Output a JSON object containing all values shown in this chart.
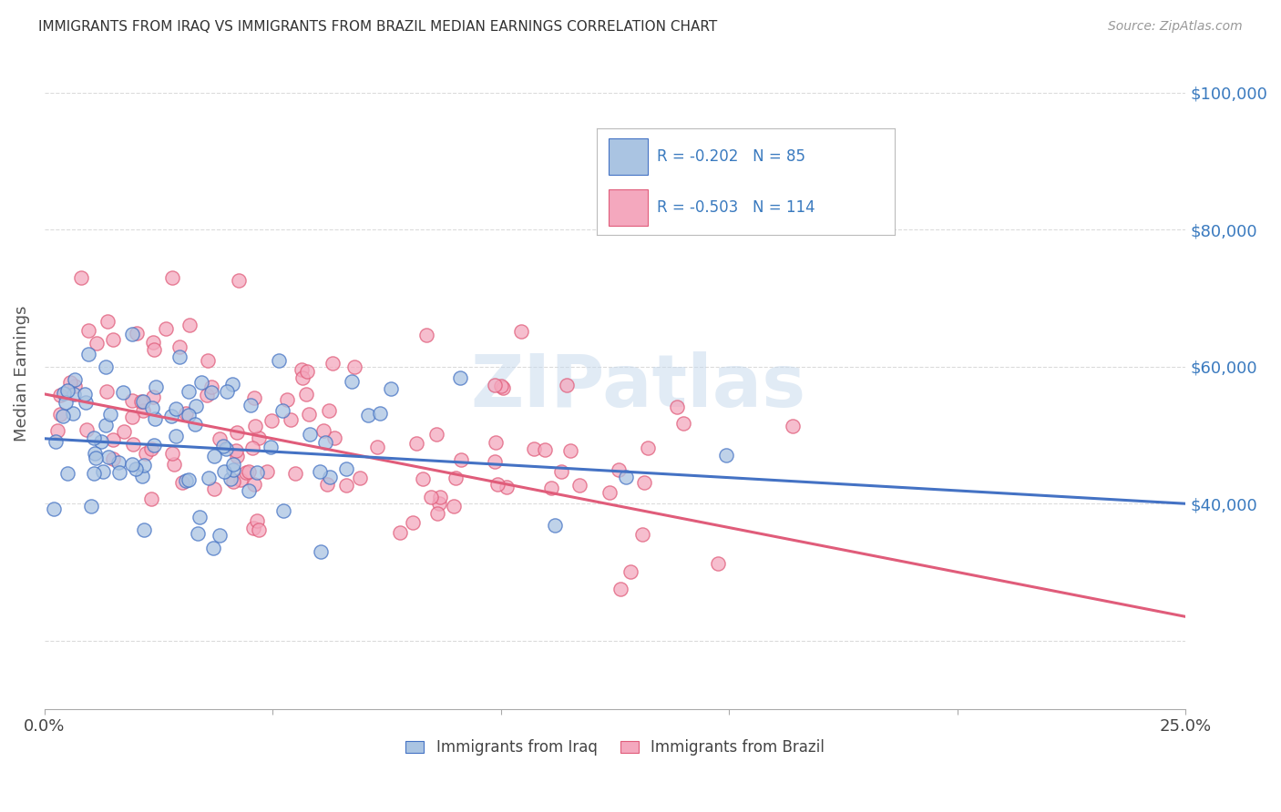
{
  "title": "IMMIGRANTS FROM IRAQ VS IMMIGRANTS FROM BRAZIL MEDIAN EARNINGS CORRELATION CHART",
  "source": "Source: ZipAtlas.com",
  "ylabel": "Median Earnings",
  "y_ticks": [
    20000,
    40000,
    60000,
    80000,
    100000
  ],
  "y_tick_labels": [
    "",
    "$40,000",
    "$60,000",
    "$80,000",
    "$100,000"
  ],
  "x_range": [
    0.0,
    0.25
  ],
  "y_range": [
    10000,
    108000
  ],
  "iraq_color": "#aac4e2",
  "iraq_line_color": "#4472c4",
  "brazil_color": "#f4a8be",
  "brazil_line_color": "#e05c7a",
  "iraq_R": -0.202,
  "iraq_N": 85,
  "brazil_R": -0.503,
  "brazil_N": 114,
  "iraq_intercept": 49500,
  "iraq_slope": -38000,
  "brazil_intercept": 56000,
  "brazil_slope": -130000,
  "watermark": "ZIPatlas",
  "legend_label_iraq": "Immigrants from Iraq",
  "legend_label_brazil": "Immigrants from Brazil",
  "background_color": "#ffffff",
  "grid_color": "#cccccc",
  "title_color": "#333333",
  "axis_label_color": "#3a7abf",
  "legend_text_color": "#3a7abf",
  "tick_label_color": "#444444"
}
